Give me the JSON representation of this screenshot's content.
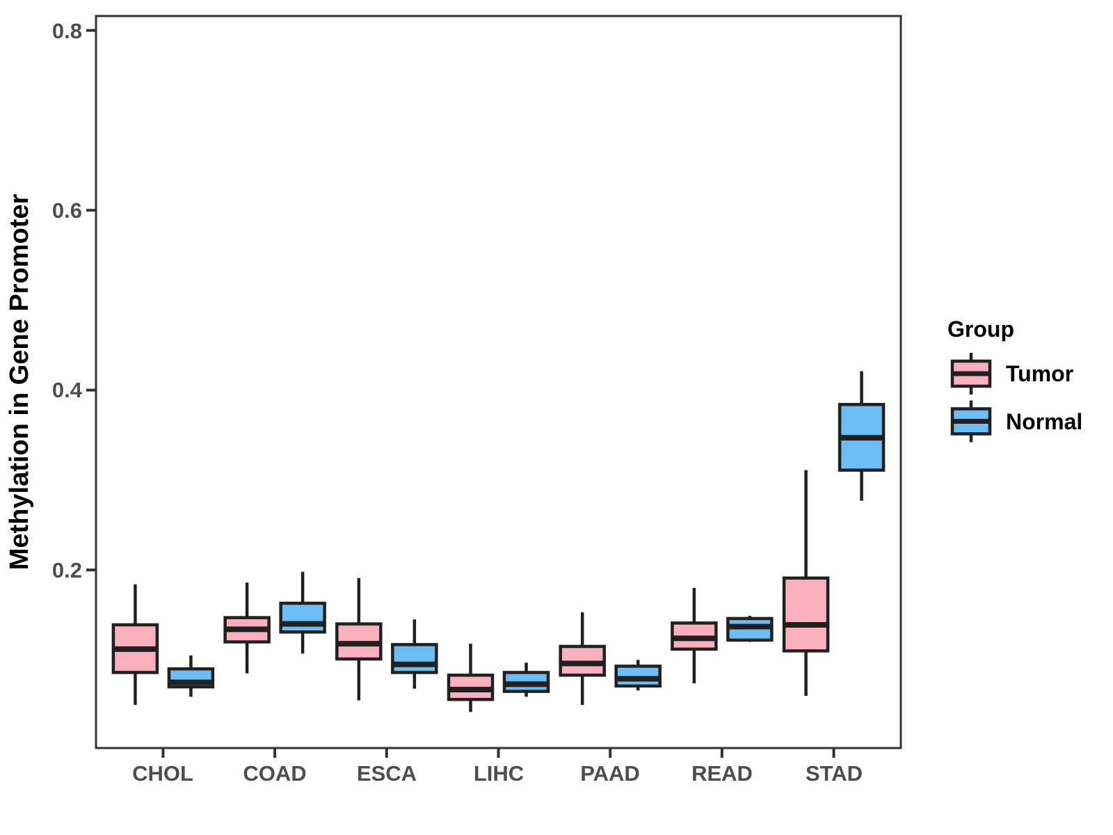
{
  "chart_data": {
    "type": "boxplot",
    "title": "",
    "xlabel": "",
    "ylabel": "Methylation in Gene Promoter",
    "categories": [
      "CHOL",
      "COAD",
      "ESCA",
      "LIHC",
      "PAAD",
      "READ",
      "STAD"
    ],
    "y_ticks": [
      0.2,
      0.4,
      0.6,
      0.8
    ],
    "y_tick_labels": [
      "0.2",
      "0.4",
      "0.6",
      "0.8"
    ],
    "ylim": [
      0.002,
      0.816
    ],
    "grid": "off",
    "legend_position": "right",
    "legend": {
      "title": "Group",
      "entries": [
        {
          "label": "Tumor",
          "color": "#FAAFBE"
        },
        {
          "label": "Normal",
          "color": "#6CBDF4"
        }
      ]
    },
    "colors": {
      "tumor_fill": "#FAAFBE",
      "normal_fill": "#6CBDF4",
      "box_stroke": "#202020",
      "axis_stroke": "#333333",
      "tick_text": "#4d4d4d"
    },
    "series": [
      {
        "name": "Tumor",
        "color": "#FAAFBE",
        "boxes": [
          {
            "category": "CHOL",
            "whisker_low": 0.05,
            "q1": 0.086,
            "median": 0.112,
            "q3": 0.139,
            "whisker_high": 0.184
          },
          {
            "category": "COAD",
            "whisker_low": 0.085,
            "q1": 0.12,
            "median": 0.134,
            "q3": 0.147,
            "whisker_high": 0.186
          },
          {
            "category": "ESCA",
            "whisker_low": 0.055,
            "q1": 0.101,
            "median": 0.118,
            "q3": 0.14,
            "whisker_high": 0.191
          },
          {
            "category": "LIHC",
            "whisker_low": 0.042,
            "q1": 0.056,
            "median": 0.067,
            "q3": 0.083,
            "whisker_high": 0.118
          },
          {
            "category": "PAAD",
            "whisker_low": 0.05,
            "q1": 0.083,
            "median": 0.096,
            "q3": 0.115,
            "whisker_high": 0.153
          },
          {
            "category": "READ",
            "whisker_low": 0.074,
            "q1": 0.112,
            "median": 0.124,
            "q3": 0.141,
            "whisker_high": 0.18
          },
          {
            "category": "STAD",
            "whisker_low": 0.06,
            "q1": 0.11,
            "median": 0.139,
            "q3": 0.191,
            "whisker_high": 0.311
          }
        ]
      },
      {
        "name": "Normal",
        "color": "#6CBDF4",
        "boxes": [
          {
            "category": "CHOL",
            "whisker_low": 0.059,
            "q1": 0.07,
            "median": 0.075,
            "q3": 0.09,
            "whisker_high": 0.105
          },
          {
            "category": "COAD",
            "whisker_low": 0.107,
            "q1": 0.131,
            "median": 0.14,
            "q3": 0.163,
            "whisker_high": 0.198
          },
          {
            "category": "ESCA",
            "whisker_low": 0.068,
            "q1": 0.086,
            "median": 0.095,
            "q3": 0.117,
            "whisker_high": 0.145
          },
          {
            "category": "LIHC",
            "whisker_low": 0.059,
            "q1": 0.065,
            "median": 0.073,
            "q3": 0.086,
            "whisker_high": 0.097
          },
          {
            "category": "PAAD",
            "whisker_low": 0.066,
            "q1": 0.071,
            "median": 0.079,
            "q3": 0.093,
            "whisker_high": 0.1
          },
          {
            "category": "READ",
            "whisker_low": 0.12,
            "q1": 0.122,
            "median": 0.137,
            "q3": 0.146,
            "whisker_high": 0.149
          },
          {
            "category": "STAD",
            "whisker_low": 0.277,
            "q1": 0.311,
            "median": 0.347,
            "q3": 0.384,
            "whisker_high": 0.421
          }
        ]
      }
    ]
  }
}
